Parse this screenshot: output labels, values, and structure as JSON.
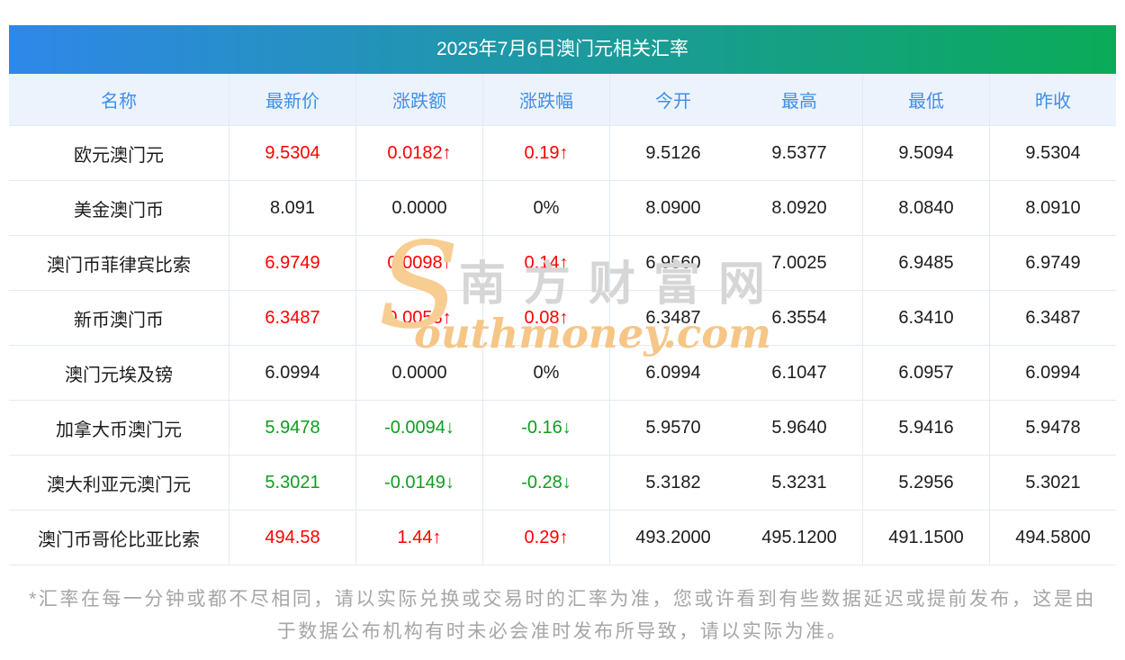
{
  "title": "2025年7月6日澳门元相关汇率",
  "colors": {
    "title_gradient_start": "#2f87e9",
    "title_gradient_end": "#0aab58",
    "header_text": "#3f8fe9",
    "up": "#fe0000",
    "down": "#0f9d1f"
  },
  "watermark": {
    "brand_en_initial": "S",
    "brand_cn": "南方财富网",
    "brand_en_rest": "outhmoney.com"
  },
  "chart_data": {
    "type": "table",
    "columns": [
      "名称",
      "最新价",
      "涨跌额",
      "涨跌幅",
      "今开",
      "最高",
      "最低",
      "昨收"
    ],
    "rows": [
      {
        "name": "欧元澳门元",
        "latest": "9.5304",
        "change": "0.0182↑",
        "change_pct": "0.19↑",
        "open": "9.5126",
        "high": "9.5377",
        "low": "9.5094",
        "prev_close": "9.5304",
        "trend": "up"
      },
      {
        "name": "美金澳门币",
        "latest": "8.091",
        "change": "0.0000",
        "change_pct": "0%",
        "open": "8.0900",
        "high": "8.0920",
        "low": "8.0840",
        "prev_close": "8.0910",
        "trend": "flat"
      },
      {
        "name": "澳门币菲律宾比索",
        "latest": "6.9749",
        "change": "0.0098↑",
        "change_pct": "0.14↑",
        "open": "6.9560",
        "high": "7.0025",
        "low": "6.9485",
        "prev_close": "6.9749",
        "trend": "up"
      },
      {
        "name": "新币澳门币",
        "latest": "6.3487",
        "change": "0.0053↑",
        "change_pct": "0.08↑",
        "open": "6.3487",
        "high": "6.3554",
        "low": "6.3410",
        "prev_close": "6.3487",
        "trend": "up"
      },
      {
        "name": "澳门元埃及镑",
        "latest": "6.0994",
        "change": "0.0000",
        "change_pct": "0%",
        "open": "6.0994",
        "high": "6.1047",
        "low": "6.0957",
        "prev_close": "6.0994",
        "trend": "flat"
      },
      {
        "name": "加拿大币澳门元",
        "latest": "5.9478",
        "change": "-0.0094↓",
        "change_pct": "-0.16↓",
        "open": "5.9570",
        "high": "5.9640",
        "low": "5.9416",
        "prev_close": "5.9478",
        "trend": "down"
      },
      {
        "name": "澳大利亚元澳门元",
        "latest": "5.3021",
        "change": "-0.0149↓",
        "change_pct": "-0.28↓",
        "open": "5.3182",
        "high": "5.3231",
        "low": "5.2956",
        "prev_close": "5.3021",
        "trend": "down"
      },
      {
        "name": "澳门币哥伦比亚比索",
        "latest": "494.58",
        "change": "1.44↑",
        "change_pct": "0.29↑",
        "open": "493.2000",
        "high": "495.1200",
        "low": "491.1500",
        "prev_close": "494.5800",
        "trend": "up"
      }
    ]
  },
  "footer_note": "*汇率在每一分钟或都不尽相同，请以实际兑换或交易时的汇率为准，您或许看到有些数据延迟或提前发布，这是由于数据公布机构有时未必会准时发布所导致，请以实际为准。"
}
